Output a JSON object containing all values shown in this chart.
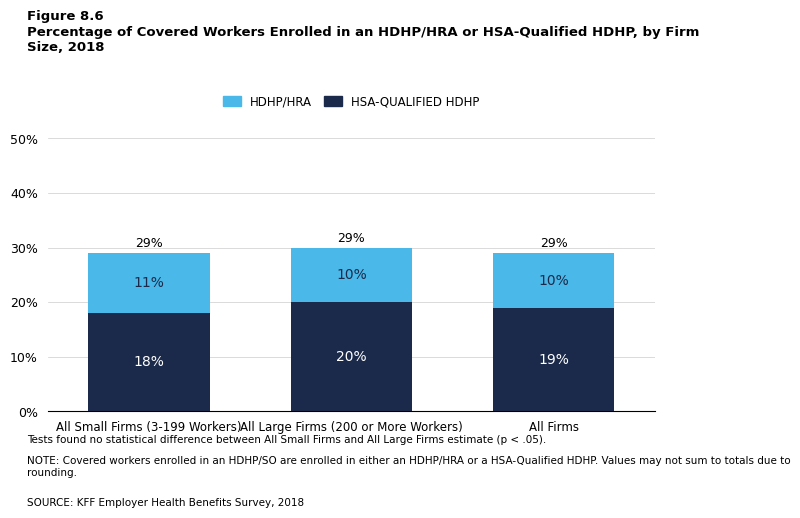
{
  "figure_label": "Figure 8.6",
  "title": "Percentage of Covered Workers Enrolled in an HDHP/HRA or HSA-Qualified HDHP, by Firm\nSize, 2018",
  "categories": [
    "All Small Firms (3-199 Workers)",
    "All Large Firms (200 or More Workers)",
    "All Firms"
  ],
  "hsa_values": [
    18,
    20,
    19
  ],
  "hdhp_values": [
    11,
    10,
    10
  ],
  "total_labels": [
    "29%",
    "29%",
    "29%"
  ],
  "hsa_labels": [
    "18%",
    "20%",
    "19%"
  ],
  "hdhp_labels": [
    "11%",
    "10%",
    "10%"
  ],
  "hsa_color": "#1b2a4a",
  "hdhp_color": "#4ab8e8",
  "legend_hdhp_label": "HDHP/HRA",
  "legend_hsa_label": "HSA-QUALIFIED HDHP",
  "ylim": [
    0,
    50
  ],
  "yticks": [
    0,
    10,
    20,
    30,
    40,
    50
  ],
  "ytick_labels": [
    "0%",
    "10%",
    "20%",
    "30%",
    "40%",
    "50%"
  ],
  "footnote1": "Tests found no statistical difference between All Small Firms and All Large Firms estimate (p < .05).",
  "footnote2": "NOTE: Covered workers enrolled in an HDHP/SO are enrolled in either an HDHP/HRA or a HSA-Qualified HDHP. Values may not sum to totals due to\nrounding.",
  "footnote3": "SOURCE: KFF Employer Health Benefits Survey, 2018",
  "bar_width": 0.6,
  "background_color": "#ffffff"
}
